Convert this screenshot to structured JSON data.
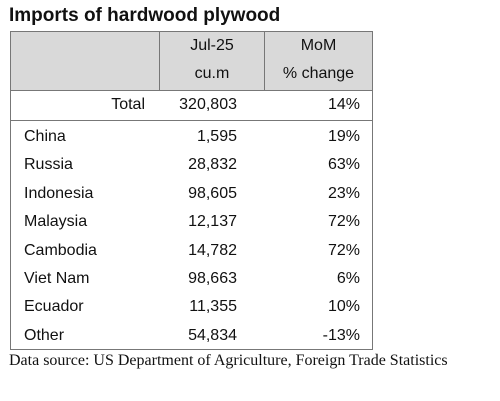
{
  "title": "Imports of hardwood plywood",
  "header": {
    "col2_line1": "Jul-25",
    "col2_line2": "cu.m",
    "col3_line1": "MoM",
    "col3_line2": "% change"
  },
  "total": {
    "label": "Total",
    "value": "320,803",
    "change": "14%"
  },
  "rows": [
    {
      "country": "China",
      "value": "1,595",
      "change": "19%"
    },
    {
      "country": "Russia",
      "value": "28,832",
      "change": "63%"
    },
    {
      "country": "Indonesia",
      "value": "98,605",
      "change": "23%"
    },
    {
      "country": "Malaysia",
      "value": "12,137",
      "change": "72%"
    },
    {
      "country": "Cambodia",
      "value": "14,782",
      "change": "72%"
    },
    {
      "country": "Viet Nam",
      "value": "98,663",
      "change": "6%"
    },
    {
      "country": "Ecuador",
      "value": "11,355",
      "change": "10%"
    },
    {
      "country": "Other",
      "value": "54,834",
      "change": "-13%"
    }
  ],
  "source": "Data source: US Department of Agriculture, Foreign Trade Statistics"
}
